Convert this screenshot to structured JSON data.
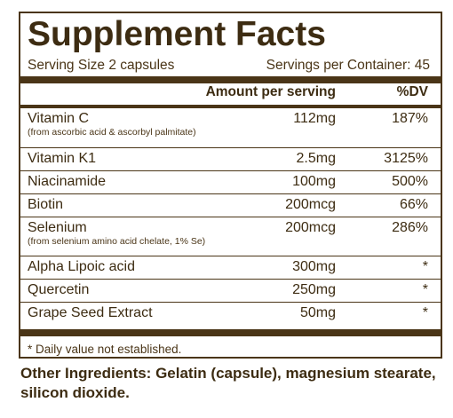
{
  "label": {
    "title": "Supplement Facts",
    "serving_size": "Serving Size 2 capsules",
    "servings_per_container": "Servings per Container: 45",
    "header_amount": "Amount per serving",
    "header_dv": "%DV",
    "nutrients": [
      {
        "name": "Vitamin C",
        "sub": "(from ascorbic acid & ascorbyl palmitate)",
        "amount": "112mg",
        "dv": "187%"
      },
      {
        "name": "Vitamin K1",
        "sub": "",
        "amount": "2.5mg",
        "dv": "3125%"
      },
      {
        "name": "Niacinamide",
        "sub": "",
        "amount": "100mg",
        "dv": "500%"
      },
      {
        "name": "Biotin",
        "sub": "",
        "amount": "200mcg",
        "dv": "66%"
      },
      {
        "name": "Selenium",
        "sub": "(from selenium amino acid chelate, 1% Se)",
        "amount": "200mcg",
        "dv": "286%"
      },
      {
        "name": "Alpha Lipoic acid",
        "sub": "",
        "amount": "300mg",
        "dv": "*"
      },
      {
        "name": "Quercetin",
        "sub": "",
        "amount": "250mg",
        "dv": "*"
      },
      {
        "name": "Grape Seed Extract",
        "sub": "",
        "amount": "50mg",
        "dv": "*"
      }
    ],
    "footnote": "* Daily value not established."
  },
  "other_ingredients": "Other Ingredients: Gelatin (capsule), magnesium stearate, silicon dioxide."
}
